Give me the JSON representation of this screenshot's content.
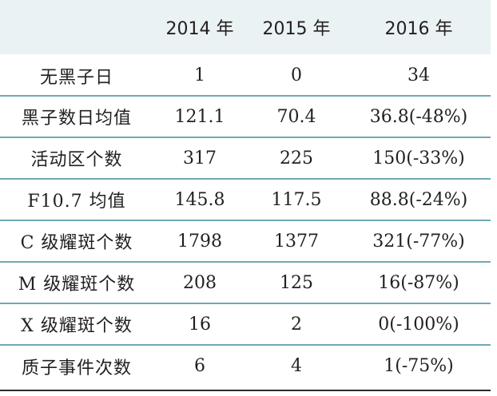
{
  "table": {
    "headers": [
      "",
      "2014 年",
      "2015 年",
      "2016 年"
    ],
    "rows": [
      [
        "无黑子日",
        "1",
        "0",
        "34"
      ],
      [
        "黑子数日均值",
        "121.1",
        "70.4",
        "36.8(-48%)"
      ],
      [
        "活动区个数",
        "317",
        "225",
        "150(-33%)"
      ],
      [
        "F10.7 均值",
        "145.8",
        "117.5",
        "88.8(-24%)"
      ],
      [
        "C 级耀斑个数",
        "1798",
        "1377",
        "321(-77%)"
      ],
      [
        "M 级耀斑个数",
        "208",
        "125",
        "16(-87%)"
      ],
      [
        "X 级耀斑个数",
        "16",
        "2",
        "0(-100%)"
      ],
      [
        "质子事件次数",
        "6",
        "4",
        "1(-75%)"
      ]
    ]
  }
}
